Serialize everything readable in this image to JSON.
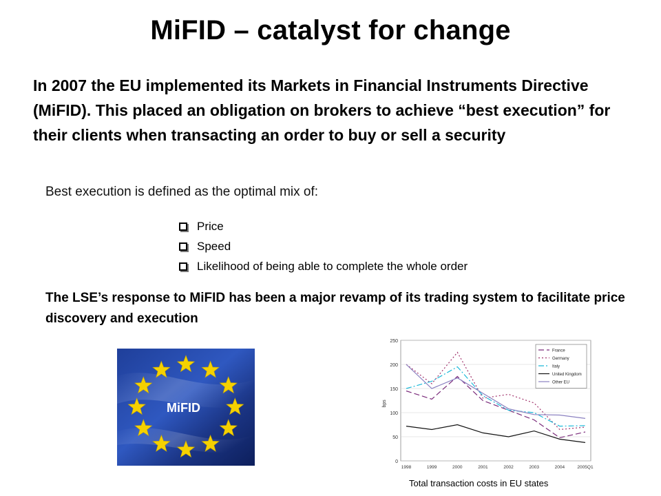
{
  "slide": {
    "title": "MiFID – catalyst for change",
    "intro": "In 2007 the EU implemented its Markets in Financial Instruments Directive (MiFID). This placed an obligation on brokers to achieve “best execution” for their clients when transacting an order to buy or sell a security",
    "definition": "Best execution is defined as the optimal mix of:",
    "bullets": [
      "Price",
      "Speed",
      "Likelihood of being able to complete the whole order"
    ],
    "lse_response": "The LSE’s response to MiFID has been a major revamp of its trading system to facilitate price discovery and execution",
    "flag_label": "MiFID",
    "caption": "Total transaction costs in EU states"
  },
  "chart_data": {
    "type": "line",
    "ylabel": "bps",
    "ylim": [
      0,
      250
    ],
    "yticks": [
      0,
      50,
      100,
      150,
      200,
      250
    ],
    "categories": [
      "1998",
      "1999",
      "2000",
      "2001",
      "2002",
      "2003",
      "2004",
      "2005Q1"
    ],
    "legend_position": "top-right",
    "series": [
      {
        "name": "France",
        "color": "#7a2a7a",
        "dash": "8,4",
        "values": [
          145,
          128,
          175,
          125,
          105,
          85,
          48,
          60
        ]
      },
      {
        "name": "Germany",
        "color": "#a0306a",
        "dash": "2,3",
        "values": [
          200,
          160,
          225,
          130,
          138,
          120,
          65,
          70
        ]
      },
      {
        "name": "Italy",
        "color": "#1ab8d8",
        "dash": "8,3,2,3",
        "values": [
          150,
          165,
          195,
          135,
          105,
          100,
          72,
          73
        ]
      },
      {
        "name": "United Kingdom",
        "color": "#111111",
        "dash": "",
        "values": [
          72,
          65,
          75,
          58,
          50,
          62,
          45,
          38
        ]
      },
      {
        "name": "Other EU",
        "color": "#8a80c0",
        "dash": "",
        "values": [
          200,
          150,
          172,
          140,
          108,
          96,
          95,
          88
        ]
      }
    ]
  }
}
